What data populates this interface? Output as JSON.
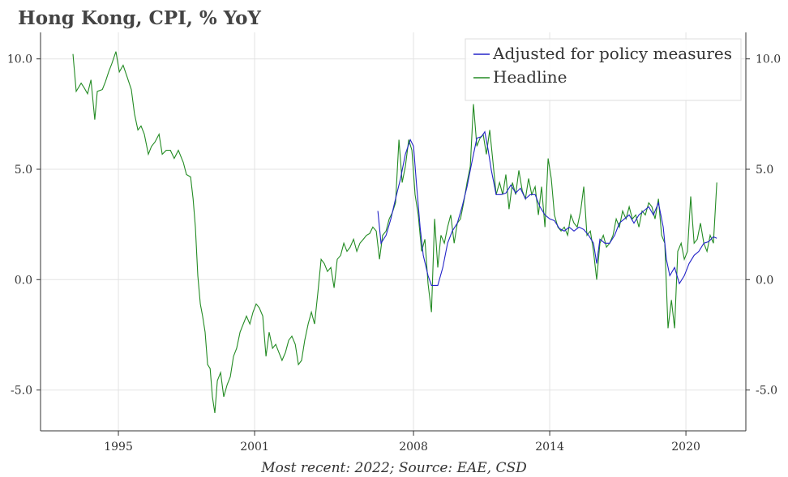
{
  "chart_data": {
    "type": "line",
    "title": "Hong Kong, CPI, % YoY",
    "footnote": "Most recent: 2022; Source: EAE, CSD",
    "xlim": [
      1991.57,
      2022.64
    ],
    "xticks": [
      1995,
      2001,
      2008,
      2014,
      2020
    ],
    "ylim": [
      -6.85,
      11.2
    ],
    "yticks": [
      {
        "value": -5,
        "label": "-5.0"
      },
      {
        "value": 0,
        "label": "0.0"
      },
      {
        "value": 5,
        "label": "5.0"
      },
      {
        "value": 10,
        "label": "10.0"
      }
    ],
    "grid": true,
    "legend": "upper right",
    "series": [
      {
        "name": "Adjusted for policy measures",
        "color": "#2323c8",
        "x": [
          2006.43,
          2006.57,
          2006.79,
          2007.0,
          2007.21,
          2007.43,
          2007.64,
          2007.86,
          2008.0,
          2008.14,
          2008.29,
          2008.43,
          2008.64,
          2008.79,
          2009.07,
          2009.29,
          2009.5,
          2009.71,
          2009.93,
          2010.14,
          2010.36,
          2010.57,
          2010.79,
          2011.0,
          2011.14,
          2011.29,
          2011.43,
          2011.64,
          2011.86,
          2012.07,
          2012.29,
          2012.5,
          2012.71,
          2012.93,
          2013.14,
          2013.36,
          2013.57,
          2013.79,
          2014.0,
          2014.21,
          2014.43,
          2014.64,
          2014.86,
          2015.07,
          2015.29,
          2015.5,
          2015.71,
          2015.93,
          2016.07,
          2016.21,
          2016.43,
          2016.64,
          2016.86,
          2017.07,
          2017.29,
          2017.5,
          2017.71,
          2017.93,
          2018.14,
          2018.36,
          2018.57,
          2018.79,
          2019.0,
          2019.14,
          2019.29,
          2019.5,
          2019.71,
          2019.93,
          2020.14,
          2020.36,
          2020.57,
          2020.79,
          2021.0,
          2021.21,
          2021.36
        ],
        "values": [
          3.11,
          1.65,
          2.01,
          2.75,
          3.66,
          4.58,
          5.68,
          6.34,
          6.04,
          4.21,
          2.38,
          1.1,
          0.18,
          -0.26,
          -0.26,
          0.55,
          1.65,
          2.2,
          2.56,
          3.3,
          4.21,
          5.31,
          6.41,
          6.48,
          6.7,
          5.86,
          4.95,
          3.85,
          3.85,
          3.92,
          4.29,
          3.92,
          4.14,
          3.66,
          3.85,
          3.85,
          3.3,
          2.93,
          2.75,
          2.67,
          2.31,
          2.2,
          2.38,
          2.2,
          2.38,
          2.27,
          2.01,
          1.65,
          0.73,
          1.83,
          1.65,
          1.65,
          2.01,
          2.56,
          2.75,
          2.93,
          2.56,
          2.93,
          3.11,
          3.3,
          2.93,
          3.48,
          2.38,
          0.92,
          0.18,
          0.55,
          -0.18,
          0.18,
          0.73,
          1.1,
          1.28,
          1.65,
          1.72,
          1.94,
          1.87
        ]
      },
      {
        "name": "Headline",
        "color": "#238b23",
        "x": [
          1993.0,
          1993.14,
          1993.36,
          1993.5,
          1993.64,
          1993.79,
          1993.96,
          1994.07,
          1994.29,
          1994.43,
          1994.57,
          1994.71,
          1994.89,
          1995.04,
          1995.21,
          1995.39,
          1995.57,
          1995.71,
          1995.86,
          1996.0,
          1996.14,
          1996.32,
          1996.46,
          1996.61,
          1996.79,
          1996.93,
          1997.11,
          1997.29,
          1997.46,
          1997.64,
          1997.86,
          1998.0,
          1998.18,
          1998.29,
          1998.39,
          1998.5,
          1998.61,
          1998.71,
          1998.82,
          1998.93,
          1999.04,
          1999.14,
          1999.25,
          1999.36,
          1999.5,
          1999.64,
          1999.79,
          1999.93,
          2000.07,
          2000.21,
          2000.36,
          2000.5,
          2000.64,
          2000.79,
          2000.93,
          2001.07,
          2001.21,
          2001.36,
          2001.5,
          2001.64,
          2001.79,
          2001.93,
          2002.07,
          2002.21,
          2002.36,
          2002.5,
          2002.64,
          2002.79,
          2002.93,
          2003.07,
          2003.21,
          2003.36,
          2003.5,
          2003.64,
          2003.79,
          2003.93,
          2004.07,
          2004.21,
          2004.36,
          2004.5,
          2004.64,
          2004.79,
          2004.93,
          2005.07,
          2005.21,
          2005.36,
          2005.5,
          2005.64,
          2005.79,
          2005.93,
          2006.07,
          2006.21,
          2006.36,
          2006.5,
          2006.64,
          2006.79,
          2006.93,
          2007.07,
          2007.21,
          2007.36,
          2007.5,
          2007.64,
          2007.79,
          2007.93,
          2008.07,
          2008.21,
          2008.36,
          2008.5,
          2008.64,
          2008.79,
          2008.93,
          2009.07,
          2009.21,
          2009.36,
          2009.5,
          2009.64,
          2009.79,
          2009.93,
          2010.07,
          2010.21,
          2010.36,
          2010.5,
          2010.64,
          2010.79,
          2010.93,
          2011.07,
          2011.21,
          2011.36,
          2011.5,
          2011.64,
          2011.79,
          2011.93,
          2012.07,
          2012.21,
          2012.36,
          2012.5,
          2012.64,
          2012.79,
          2012.93,
          2013.07,
          2013.21,
          2013.36,
          2013.5,
          2013.64,
          2013.79,
          2013.93,
          2014.07,
          2014.21,
          2014.36,
          2014.5,
          2014.64,
          2014.79,
          2014.93,
          2015.07,
          2015.21,
          2015.36,
          2015.5,
          2015.64,
          2015.79,
          2015.93,
          2016.07,
          2016.21,
          2016.36,
          2016.5,
          2016.64,
          2016.79,
          2016.93,
          2017.07,
          2017.21,
          2017.36,
          2017.5,
          2017.64,
          2017.79,
          2017.93,
          2018.07,
          2018.21,
          2018.36,
          2018.5,
          2018.64,
          2018.79,
          2018.93,
          2019.07,
          2019.21,
          2019.36,
          2019.5,
          2019.64,
          2019.79,
          2019.93,
          2020.07,
          2020.21,
          2020.36,
          2020.5,
          2020.64,
          2020.79,
          2020.93,
          2021.07,
          2021.21,
          2021.36
        ],
        "values": [
          10.22,
          8.53,
          8.9,
          8.68,
          8.42,
          9.05,
          7.25,
          8.53,
          8.61,
          8.97,
          9.41,
          9.78,
          10.33,
          9.41,
          9.71,
          9.16,
          8.61,
          7.51,
          6.78,
          6.96,
          6.59,
          5.68,
          6.04,
          6.23,
          6.59,
          5.68,
          5.86,
          5.86,
          5.49,
          5.86,
          5.31,
          4.76,
          4.65,
          3.66,
          2.38,
          0.18,
          -1.1,
          -1.65,
          -2.38,
          -3.85,
          -4.03,
          -5.31,
          -6.04,
          -4.58,
          -4.21,
          -5.31,
          -4.76,
          -4.4,
          -3.48,
          -3.11,
          -2.38,
          -2.01,
          -1.65,
          -2.01,
          -1.47,
          -1.1,
          -1.28,
          -1.65,
          -3.48,
          -2.38,
          -3.11,
          -2.93,
          -3.3,
          -3.66,
          -3.3,
          -2.75,
          -2.56,
          -2.93,
          -3.85,
          -3.66,
          -2.75,
          -2.01,
          -1.47,
          -2.01,
          -0.55,
          0.92,
          0.73,
          0.37,
          0.55,
          -0.37,
          0.92,
          1.1,
          1.65,
          1.28,
          1.47,
          1.83,
          1.28,
          1.65,
          1.83,
          2.01,
          2.09,
          2.38,
          2.2,
          0.92,
          2.01,
          2.2,
          2.75,
          3.04,
          3.48,
          6.34,
          4.4,
          5.13,
          6.34,
          5.86,
          3.85,
          2.93,
          1.28,
          1.83,
          -0.18,
          -1.47,
          2.75,
          0.55,
          2.01,
          1.65,
          2.38,
          2.93,
          1.65,
          2.56,
          2.75,
          3.48,
          4.4,
          5.13,
          7.95,
          6.04,
          6.41,
          6.59,
          5.68,
          6.78,
          5.31,
          3.85,
          4.4,
          3.85,
          4.76,
          3.19,
          4.4,
          3.85,
          4.95,
          4.03,
          3.66,
          4.58,
          3.85,
          4.21,
          2.93,
          4.21,
          2.38,
          5.49,
          4.58,
          2.93,
          2.38,
          2.2,
          2.38,
          2.01,
          2.93,
          2.56,
          2.38,
          3.11,
          4.21,
          2.01,
          2.2,
          1.28,
          0.0,
          1.65,
          2.01,
          1.47,
          1.65,
          2.01,
          2.75,
          2.38,
          3.11,
          2.75,
          3.3,
          2.75,
          2.93,
          2.38,
          3.11,
          2.93,
          3.48,
          3.3,
          2.75,
          3.66,
          2.01,
          1.65,
          -2.2,
          -0.92,
          -2.2,
          1.28,
          1.65,
          0.92,
          1.28,
          3.77,
          1.65,
          1.83,
          2.56,
          1.65,
          1.28,
          2.01,
          1.65,
          4.4
        ]
      }
    ]
  }
}
